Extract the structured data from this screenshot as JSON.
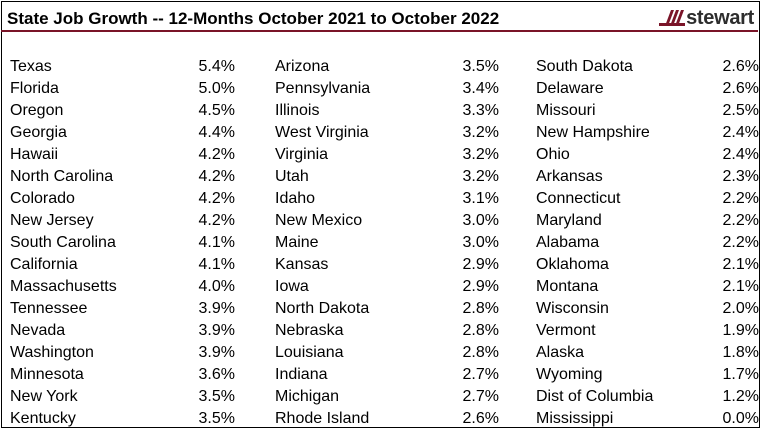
{
  "header": {
    "title": "State Job Growth -- 12-Months October 2021 to October 2022",
    "logo_text": "stewart",
    "brand_color": "#7a1428"
  },
  "chart_data": {
    "type": "table",
    "title": "State Job Growth -- 12-Months October 2021 to October 2022",
    "columns": [
      [
        {
          "state": "Texas",
          "growth": "5.4%"
        },
        {
          "state": "Florida",
          "growth": "5.0%"
        },
        {
          "state": "Oregon",
          "growth": "4.5%"
        },
        {
          "state": "Georgia",
          "growth": "4.4%"
        },
        {
          "state": "Hawaii",
          "growth": "4.2%"
        },
        {
          "state": "North Carolina",
          "growth": "4.2%"
        },
        {
          "state": "Colorado",
          "growth": "4.2%"
        },
        {
          "state": "New Jersey",
          "growth": "4.2%"
        },
        {
          "state": "South Carolina",
          "growth": "4.1%"
        },
        {
          "state": "California",
          "growth": "4.1%"
        },
        {
          "state": "Massachusetts",
          "growth": "4.0%"
        },
        {
          "state": "Tennessee",
          "growth": "3.9%"
        },
        {
          "state": "Nevada",
          "growth": "3.9%"
        },
        {
          "state": "Washington",
          "growth": "3.9%"
        },
        {
          "state": "Minnesota",
          "growth": "3.6%"
        },
        {
          "state": "New York",
          "growth": "3.5%"
        },
        {
          "state": "Kentucky",
          "growth": "3.5%"
        }
      ],
      [
        {
          "state": "Arizona",
          "growth": "3.5%"
        },
        {
          "state": "Pennsylvania",
          "growth": "3.4%"
        },
        {
          "state": "Illinois",
          "growth": "3.3%"
        },
        {
          "state": "West Virginia",
          "growth": "3.2%"
        },
        {
          "state": "Virginia",
          "growth": "3.2%"
        },
        {
          "state": "Utah",
          "growth": "3.2%"
        },
        {
          "state": "Idaho",
          "growth": "3.1%"
        },
        {
          "state": "New Mexico",
          "growth": "3.0%"
        },
        {
          "state": "Maine",
          "growth": "3.0%"
        },
        {
          "state": "Kansas",
          "growth": "2.9%"
        },
        {
          "state": "Iowa",
          "growth": "2.9%"
        },
        {
          "state": "North Dakota",
          "growth": "2.8%"
        },
        {
          "state": "Nebraska",
          "growth": "2.8%"
        },
        {
          "state": "Louisiana",
          "growth": "2.8%"
        },
        {
          "state": "Indiana",
          "growth": "2.7%"
        },
        {
          "state": "Michigan",
          "growth": "2.7%"
        },
        {
          "state": "Rhode Island",
          "growth": "2.6%"
        }
      ],
      [
        {
          "state": "South Dakota",
          "growth": "2.6%"
        },
        {
          "state": "Delaware",
          "growth": "2.6%"
        },
        {
          "state": "Missouri",
          "growth": "2.5%"
        },
        {
          "state": "New Hampshire",
          "growth": "2.4%"
        },
        {
          "state": "Ohio",
          "growth": "2.4%"
        },
        {
          "state": "Arkansas",
          "growth": "2.3%"
        },
        {
          "state": "Connecticut",
          "growth": "2.2%"
        },
        {
          "state": "Maryland",
          "growth": "2.2%"
        },
        {
          "state": "Alabama",
          "growth": "2.2%"
        },
        {
          "state": "Oklahoma",
          "growth": "2.1%"
        },
        {
          "state": "Montana",
          "growth": "2.1%"
        },
        {
          "state": "Wisconsin",
          "growth": "2.0%"
        },
        {
          "state": "Vermont",
          "growth": "1.9%"
        },
        {
          "state": "Alaska",
          "growth": "1.8%"
        },
        {
          "state": "Wyoming",
          "growth": "1.7%"
        },
        {
          "state": "Dist of Columbia",
          "growth": "1.2%"
        },
        {
          "state": "Mississippi",
          "growth": "0.0%"
        }
      ]
    ]
  }
}
